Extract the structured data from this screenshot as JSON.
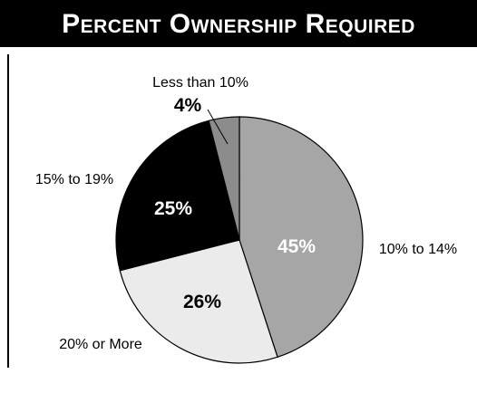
{
  "header": {
    "title": "Percent Ownership Required"
  },
  "chart_data": {
    "type": "pie",
    "title": "Percent Ownership Required",
    "start_angle_deg": 0,
    "direction": "clockwise",
    "slices": [
      {
        "category": "10% to 14%",
        "value": 45,
        "value_label": "45%",
        "color": "#a6a6a6",
        "value_label_color": "#ffffff"
      },
      {
        "category": "20% or More",
        "value": 26,
        "value_label": "26%",
        "color": "#ebebeb",
        "value_label_color": "#000000"
      },
      {
        "category": "15% to 19%",
        "value": 25,
        "value_label": "25%",
        "color": "#000000",
        "value_label_color": "#ffffff"
      },
      {
        "category": "Less than 10%",
        "value": 4,
        "value_label": "4%",
        "color": "#8c8c8c",
        "value_label_color": "#000000"
      }
    ]
  }
}
